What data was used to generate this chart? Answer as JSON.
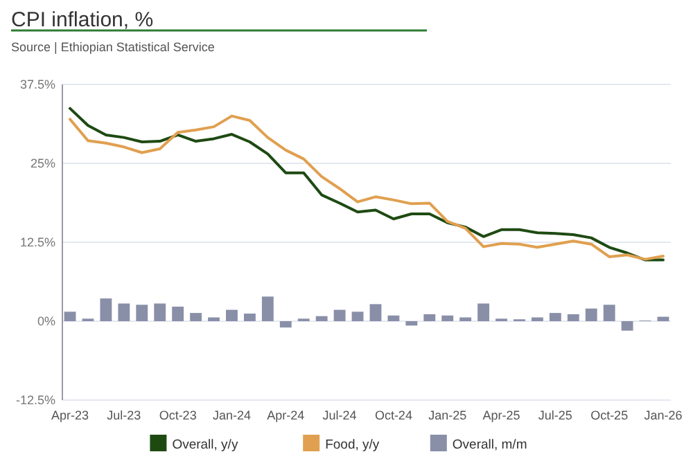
{
  "chart_data": {
    "type": "line",
    "title": "CPI inflation, %",
    "subtitle": "Source | Ethiopian Statistical Service",
    "categories": [
      "Apr-23",
      null,
      null,
      "Jul-23",
      null,
      null,
      "Oct-23",
      null,
      null,
      "Jan-24",
      null,
      null,
      "Apr-24",
      null,
      null,
      "Jul-24",
      null,
      null,
      "Oct-24",
      null,
      null,
      "Jan-25",
      null,
      null,
      "Apr-25",
      null,
      null,
      "Jul-25",
      null,
      null,
      "Oct-25",
      null,
      null,
      "Jan-26"
    ],
    "series": [
      {
        "name": "Overall, y/y",
        "color": "#1e4a12",
        "values": [
          33.7,
          31.0,
          29.5,
          29.1,
          28.4,
          28.5,
          29.5,
          28.5,
          28.9,
          29.6,
          28.4,
          26.5,
          23.5,
          23.5,
          20.0,
          18.7,
          17.3,
          17.6,
          16.2,
          17.0,
          17.0,
          15.6,
          14.9,
          13.4,
          14.5,
          14.5,
          14.0,
          13.9,
          13.7,
          13.2,
          11.7,
          10.8,
          9.7,
          9.7
        ]
      },
      {
        "name": "Food, y/y",
        "color": "#e0a050",
        "values": [
          32.0,
          28.6,
          28.2,
          27.6,
          26.7,
          27.3,
          29.9,
          30.3,
          30.8,
          32.5,
          31.8,
          29.1,
          27.1,
          25.7,
          22.9,
          21.0,
          18.9,
          19.7,
          19.2,
          18.6,
          18.7,
          15.8,
          14.7,
          11.8,
          12.3,
          12.2,
          11.7,
          12.2,
          12.7,
          12.2,
          10.2,
          10.5,
          9.8,
          10.3
        ]
      },
      {
        "name": "Overall, m/m",
        "type": "bar",
        "color": "#8a8fa8",
        "values": [
          1.5,
          0.4,
          3.6,
          2.8,
          2.6,
          2.8,
          2.3,
          1.3,
          0.6,
          1.8,
          1.2,
          3.9,
          -1.0,
          0.4,
          0.8,
          1.8,
          1.5,
          2.7,
          0.9,
          -0.7,
          1.1,
          0.9,
          0.6,
          2.8,
          0.4,
          0.3,
          0.6,
          1.3,
          1.1,
          2.0,
          2.6,
          -1.5,
          0.1,
          0.7
        ]
      }
    ],
    "ylim": [
      -12.5,
      37.5
    ],
    "yticks": [
      {
        "value": -12.5,
        "label": "-12.5%"
      },
      {
        "value": 0,
        "label": "0%"
      },
      {
        "value": 12.5,
        "label": "12.5%"
      },
      {
        "value": 25,
        "label": "25%"
      },
      {
        "value": 37.5,
        "label": "37.5%"
      }
    ],
    "grid": "y",
    "legend": "bottom"
  }
}
